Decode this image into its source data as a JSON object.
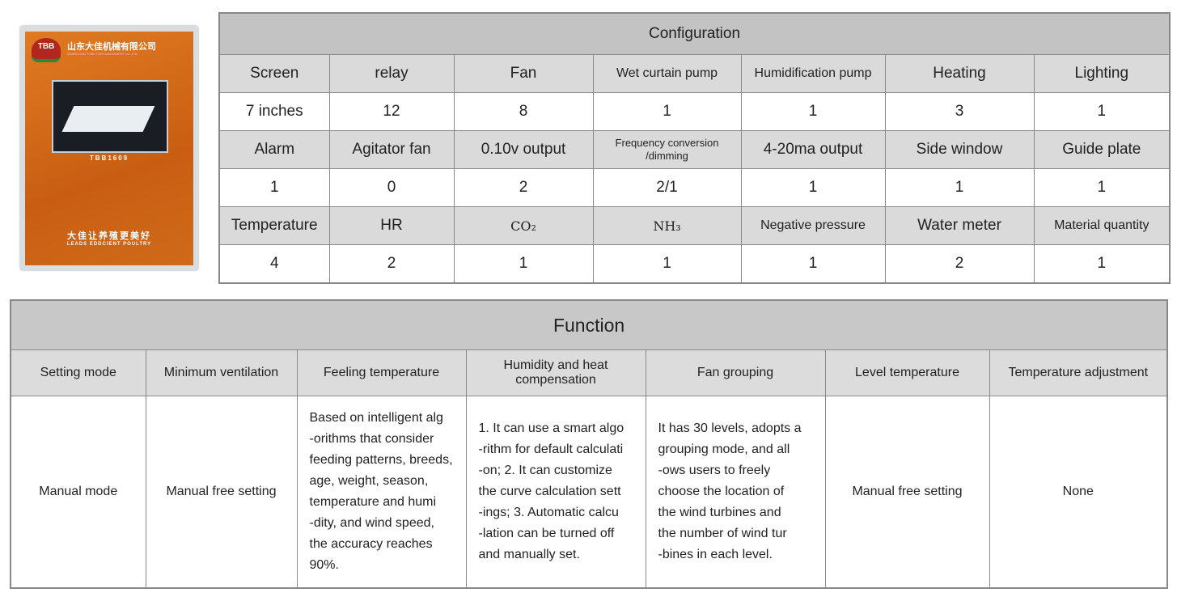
{
  "product_photo": {
    "logo_text": "TBB",
    "company_cn": "山东大佳机械有限公司",
    "company_en": "SHANDONG TOBETTER MACHINERY CO.,LTD",
    "model": "TBB1609",
    "slogan_cn": "大佳让养殖更美好",
    "slogan_en": "LEADS EDDCIENT POULTRY",
    "panel_color": "#d2691e"
  },
  "configuration": {
    "title": "Configuration",
    "rows": [
      {
        "type": "lab",
        "cells": [
          "Screen",
          "relay",
          "Fan",
          "Wet curtain pump",
          "Humidification pump",
          "Heating",
          "Lighting"
        ]
      },
      {
        "type": "val",
        "cells": [
          "7 inches",
          "12",
          "8",
          "1",
          "1",
          "3",
          "1"
        ]
      },
      {
        "type": "lab",
        "cells": [
          "Alarm",
          "Agitator fan",
          "0.10v output",
          "Frequency conversion\n/dimming",
          "4-20ma output",
          "Side window",
          "Guide plate"
        ]
      },
      {
        "type": "val",
        "cells": [
          "1",
          "0",
          "2",
          "2/1",
          "1",
          "1",
          "1"
        ]
      },
      {
        "type": "lab",
        "cells": [
          "Temperature",
          "HR",
          "CO₂",
          "NH₃",
          "Negative pressure",
          "Water meter",
          "Material quantity"
        ]
      },
      {
        "type": "val",
        "cells": [
          "4",
          "2",
          "1",
          "1",
          "1",
          "2",
          "1"
        ]
      }
    ]
  },
  "function": {
    "title": "Function",
    "headers": [
      "Setting mode",
      "Minimum ventilation",
      "Feeling temperature",
      "Humidity and heat\ncompensation",
      "Fan grouping",
      "Level temperature",
      "Temperature adjustment"
    ],
    "values": [
      "Manual mode",
      "Manual free setting",
      "Based on intelligent alg\n-orithms that consider\nfeeding patterns, breeds,\nage, weight, season,\ntemperature and humi\n-dity, and wind speed,\nthe accuracy reaches\n90%.",
      "1. It can use a smart algo\n-rithm for default calculati\n-on; 2. It can customize\nthe curve calculation sett\n-ings; 3. Automatic calcu\n-lation can be turned off\nand manually set.",
      "It has 30 levels, adopts a\ngrouping mode, and all\n-ows users to freely\nchoose the location of\nthe wind turbines and\nthe number of wind tur\n-bines in each level.",
      "Manual free setting",
      "None"
    ]
  }
}
